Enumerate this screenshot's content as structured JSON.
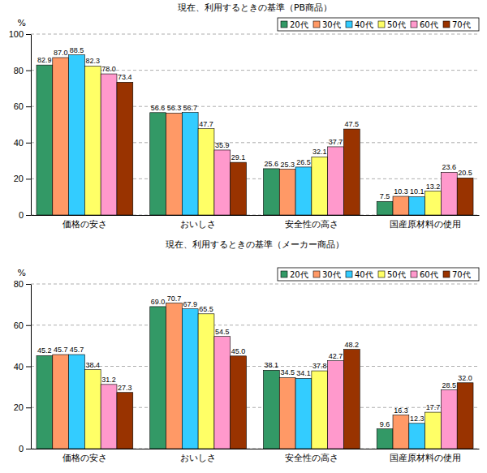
{
  "chart_data": [
    {
      "type": "bar",
      "title": "現在、利用するときの基準（PB商品）",
      "ylabel": "%",
      "categories": [
        "価格の安さ",
        "おいしさ",
        "安全性の高さ",
        "国産原材料の使用"
      ],
      "series": [
        {
          "name": "20代",
          "color": "#339966",
          "values": [
            82.9,
            56.6,
            25.6,
            7.5
          ],
          "value_labels": [
            "82.9",
            "56.6",
            "25.6",
            "7.5"
          ]
        },
        {
          "name": "30代",
          "color": "#ff9966",
          "values": [
            87.0,
            56.3,
            25.3,
            10.3
          ],
          "value_labels": [
            "87.0",
            "56.3",
            "25.3",
            "10.3"
          ]
        },
        {
          "name": "40代",
          "color": "#33ccff",
          "values": [
            88.5,
            56.7,
            26.5,
            10.1
          ],
          "value_labels": [
            "88.5",
            "56.7",
            "26.5",
            "10.1"
          ]
        },
        {
          "name": "50代",
          "color": "#ffff66",
          "values": [
            82.3,
            47.7,
            32.1,
            13.2
          ],
          "value_labels": [
            "82.3",
            "47.7",
            "32.1",
            "13.2"
          ]
        },
        {
          "name": "60代",
          "color": "#ff99cc",
          "values": [
            78.0,
            35.9,
            37.7,
            23.6
          ],
          "value_labels": [
            "78.0",
            "35.9",
            "37.7",
            "23.6"
          ]
        },
        {
          "name": "70代",
          "color": "#993300",
          "values": [
            73.4,
            29.1,
            47.5,
            20.5
          ],
          "value_labels": [
            "73.4",
            "29.1",
            "47.5",
            "20.5"
          ]
        }
      ],
      "ylim": [
        0,
        100
      ],
      "yticks": [
        0,
        20,
        40,
        60,
        80,
        100
      ],
      "grid": true,
      "legend": "top-right",
      "data_labels": true
    },
    {
      "type": "bar",
      "title": "現在、利用するときの基準（メーカー商品）",
      "ylabel": "%",
      "categories": [
        "価格の安さ",
        "おいしさ",
        "安全性の高さ",
        "国産原材料の使用"
      ],
      "series": [
        {
          "name": "20代",
          "color": "#339966",
          "values": [
            45.2,
            69.0,
            38.1,
            9.6
          ],
          "value_labels": [
            "45.2",
            "69.0",
            "38.1",
            "9.6"
          ]
        },
        {
          "name": "30代",
          "color": "#ff9966",
          "values": [
            45.7,
            70.7,
            34.5,
            16.3
          ],
          "value_labels": [
            "45.7",
            "70.7",
            "34.5",
            "16.3"
          ]
        },
        {
          "name": "40代",
          "color": "#33ccff",
          "values": [
            45.7,
            67.9,
            34.1,
            12.3
          ],
          "value_labels": [
            "45.7",
            "67.9",
            "34.1",
            "12.3"
          ]
        },
        {
          "name": "50代",
          "color": "#ffff66",
          "values": [
            38.4,
            65.5,
            37.8,
            17.7
          ],
          "value_labels": [
            "38.4",
            "65.5",
            "37.8",
            "17.7"
          ]
        },
        {
          "name": "60代",
          "color": "#ff99cc",
          "values": [
            31.2,
            54.5,
            42.7,
            28.5
          ],
          "value_labels": [
            "31.2",
            "54.5",
            "42.7",
            "28.5"
          ]
        },
        {
          "name": "70代",
          "color": "#993300",
          "values": [
            27.3,
            45.0,
            48.2,
            32.0
          ],
          "value_labels": [
            "27.3",
            "45.0",
            "48.2",
            "32.0"
          ]
        }
      ],
      "ylim": [
        0,
        80
      ],
      "yticks": [
        0,
        20,
        40,
        60,
        80
      ],
      "grid": true,
      "legend": "top-right",
      "data_labels": true
    }
  ]
}
